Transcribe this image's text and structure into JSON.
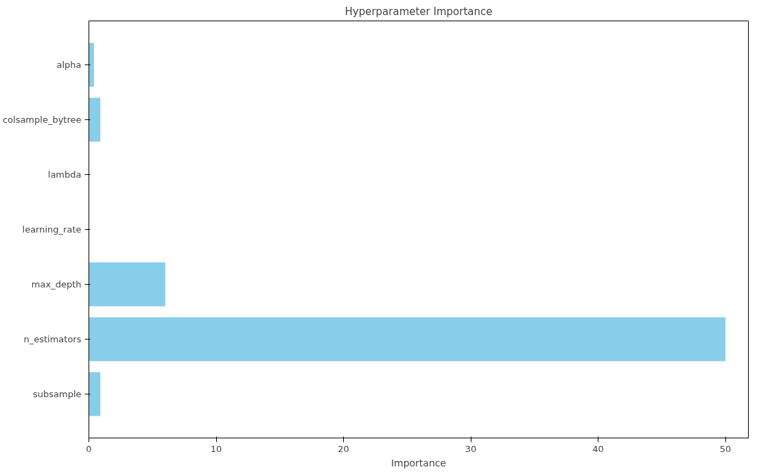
{
  "chart_data": {
    "type": "bar",
    "orientation": "horizontal",
    "title": "Hyperparameter Importance",
    "xlabel": "Importance",
    "categories": [
      "alpha",
      "colsample_bytree",
      "lambda",
      "learning_rate",
      "max_depth",
      "n_estimators",
      "subsample"
    ],
    "values": [
      0.4,
      0.9,
      0,
      0,
      6,
      50,
      0.9
    ],
    "color": "#87ceeb",
    "xlim": [
      0,
      51.8
    ],
    "xticks": [
      0,
      10,
      20,
      30,
      40,
      50
    ],
    "grid": false
  }
}
